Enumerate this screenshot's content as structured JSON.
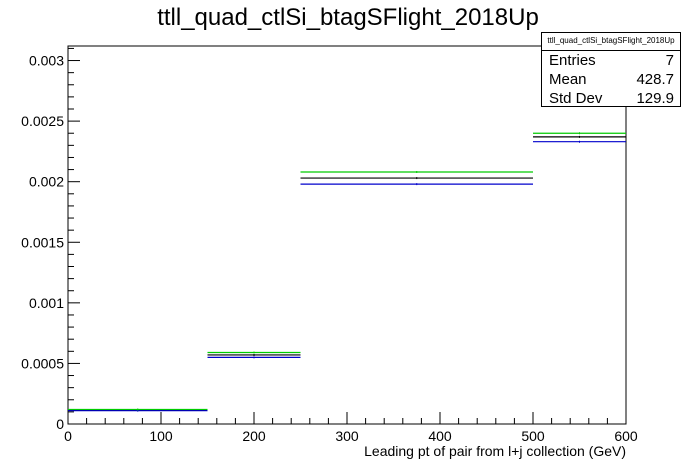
{
  "chart_data": {
    "type": "histogram",
    "title": "ttll_quad_ctlSi_btagSFlight_2018Up",
    "xlabel": "Leading pt of pair from l+j collection (GeV)",
    "ylabel": "",
    "xlim": [
      0,
      600
    ],
    "ylim": [
      0,
      0.00312
    ],
    "bin_edges": [
      0,
      150,
      250,
      500,
      600
    ],
    "x_ticks": [
      "0",
      "100",
      "200",
      "300",
      "400",
      "500",
      "600"
    ],
    "y_ticks": [
      "0",
      "0.0005",
      "0.001",
      "0.0015",
      "0.002",
      "0.0025",
      "0.003"
    ],
    "series": [
      {
        "color": "#000000",
        "values": [
          0.000115,
          0.00057,
          0.00203,
          0.00237
        ]
      },
      {
        "color": "#0000cc",
        "values": [
          0.00011,
          0.00055,
          0.00198,
          0.00233
        ]
      },
      {
        "color": "#00cc00",
        "values": [
          0.00012,
          0.00059,
          0.00208,
          0.0024
        ]
      }
    ],
    "grid": false
  },
  "stats_box": {
    "header": "ttll_quad_ctlSi_btagSFlight_2018Up",
    "rows": [
      {
        "label": "Entries",
        "value": "7"
      },
      {
        "label": "Mean",
        "value": "428.7"
      },
      {
        "label": "Std Dev",
        "value": "129.9"
      }
    ]
  }
}
